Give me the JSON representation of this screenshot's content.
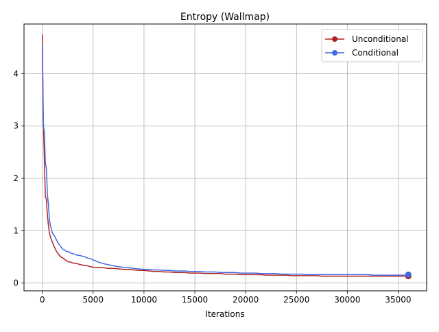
{
  "chart_data": {
    "type": "line",
    "title": "Entropy (Wallmap)",
    "xlabel": "Iterations",
    "ylabel": "",
    "xlim": [
      -1800,
      37800
    ],
    "ylim": [
      -0.15,
      4.95
    ],
    "xticks": [
      0,
      5000,
      10000,
      15000,
      20000,
      25000,
      30000,
      35000
    ],
    "xtick_labels": [
      "0",
      "5000",
      "10000",
      "15000",
      "20000",
      "25000",
      "30000",
      "35000"
    ],
    "yticks": [
      0,
      1,
      2,
      3,
      4
    ],
    "ytick_labels": [
      "0",
      "1",
      "2",
      "3",
      "4"
    ],
    "grid": true,
    "legend_position": "top-right",
    "series": [
      {
        "name": "Unconditional",
        "color": "#b22222",
        "marker_last": true,
        "x": [
          0,
          100,
          200,
          300,
          400,
          500,
          600,
          700,
          800,
          1000,
          1200,
          1400,
          1600,
          1800,
          2000,
          2200,
          2400,
          2600,
          2800,
          3000,
          3200,
          3400,
          3600,
          3800,
          4000,
          4200,
          4400,
          4600,
          4800,
          5000,
          5500,
          6000,
          6500,
          7000,
          7500,
          8000,
          8500,
          9000,
          9500,
          10000,
          10500,
          11000,
          11500,
          12000,
          12500,
          13000,
          13500,
          14000,
          14500,
          15000,
          15500,
          16000,
          16500,
          17000,
          17500,
          18000,
          18500,
          19000,
          19500,
          20000,
          20500,
          21000,
          21500,
          22000,
          22500,
          23000,
          23500,
          24000,
          24500,
          25000,
          25500,
          26000,
          26500,
          27000,
          27500,
          28000,
          28500,
          29000,
          29500,
          30000,
          30500,
          31000,
          31500,
          32000,
          32500,
          33000,
          33500,
          34000,
          34500,
          35000,
          35500,
          36000
        ],
        "y": [
          4.75,
          3.1,
          2.4,
          1.65,
          1.6,
          1.3,
          1.1,
          0.95,
          0.88,
          0.78,
          0.68,
          0.6,
          0.55,
          0.5,
          0.48,
          0.45,
          0.42,
          0.4,
          0.4,
          0.38,
          0.38,
          0.37,
          0.36,
          0.35,
          0.34,
          0.33,
          0.33,
          0.32,
          0.31,
          0.3,
          0.3,
          0.29,
          0.28,
          0.28,
          0.27,
          0.26,
          0.26,
          0.25,
          0.24,
          0.24,
          0.23,
          0.22,
          0.22,
          0.21,
          0.21,
          0.2,
          0.2,
          0.2,
          0.19,
          0.19,
          0.19,
          0.18,
          0.18,
          0.18,
          0.18,
          0.17,
          0.17,
          0.17,
          0.16,
          0.16,
          0.16,
          0.16,
          0.16,
          0.15,
          0.15,
          0.15,
          0.15,
          0.15,
          0.14,
          0.14,
          0.14,
          0.14,
          0.14,
          0.14,
          0.13,
          0.13,
          0.13,
          0.13,
          0.13,
          0.13,
          0.13,
          0.13,
          0.13,
          0.13,
          0.13,
          0.13,
          0.13,
          0.13,
          0.13,
          0.13,
          0.13,
          0.13
        ]
      },
      {
        "name": "Conditional",
        "color": "#4169e1",
        "marker_last": true,
        "x": [
          0,
          100,
          200,
          300,
          400,
          500,
          600,
          700,
          800,
          1000,
          1200,
          1400,
          1600,
          1800,
          2000,
          2200,
          2400,
          2600,
          2800,
          3000,
          3200,
          3400,
          3600,
          3800,
          4000,
          4200,
          4400,
          4600,
          4800,
          5000,
          5500,
          6000,
          6500,
          7000,
          7500,
          8000,
          8500,
          9000,
          9500,
          10000,
          10500,
          11000,
          11500,
          12000,
          12500,
          13000,
          13500,
          14000,
          14500,
          15000,
          15500,
          16000,
          16500,
          17000,
          17500,
          18000,
          18500,
          19000,
          19500,
          20000,
          20500,
          21000,
          21500,
          22000,
          22500,
          23000,
          23500,
          24000,
          24500,
          25000,
          25500,
          26000,
          26500,
          27000,
          27500,
          28000,
          28500,
          29000,
          29500,
          30000,
          30500,
          31000,
          31500,
          32000,
          32500,
          33000,
          33500,
          34000,
          34500,
          35000,
          35500,
          36000
        ],
        "y": [
          4.55,
          3.0,
          2.9,
          2.3,
          2.2,
          1.7,
          1.5,
          1.2,
          1.1,
          0.95,
          0.9,
          0.82,
          0.75,
          0.7,
          0.65,
          0.63,
          0.6,
          0.6,
          0.57,
          0.56,
          0.55,
          0.53,
          0.53,
          0.52,
          0.51,
          0.5,
          0.48,
          0.47,
          0.46,
          0.44,
          0.4,
          0.37,
          0.35,
          0.33,
          0.31,
          0.3,
          0.29,
          0.28,
          0.27,
          0.26,
          0.26,
          0.25,
          0.25,
          0.24,
          0.24,
          0.23,
          0.23,
          0.23,
          0.22,
          0.22,
          0.22,
          0.21,
          0.21,
          0.21,
          0.2,
          0.2,
          0.2,
          0.2,
          0.19,
          0.19,
          0.19,
          0.19,
          0.18,
          0.18,
          0.18,
          0.18,
          0.17,
          0.17,
          0.17,
          0.17,
          0.17,
          0.16,
          0.16,
          0.16,
          0.16,
          0.16,
          0.16,
          0.16,
          0.16,
          0.16,
          0.16,
          0.16,
          0.16,
          0.16,
          0.15,
          0.15,
          0.15,
          0.15,
          0.15,
          0.15,
          0.15,
          0.16
        ]
      }
    ]
  }
}
